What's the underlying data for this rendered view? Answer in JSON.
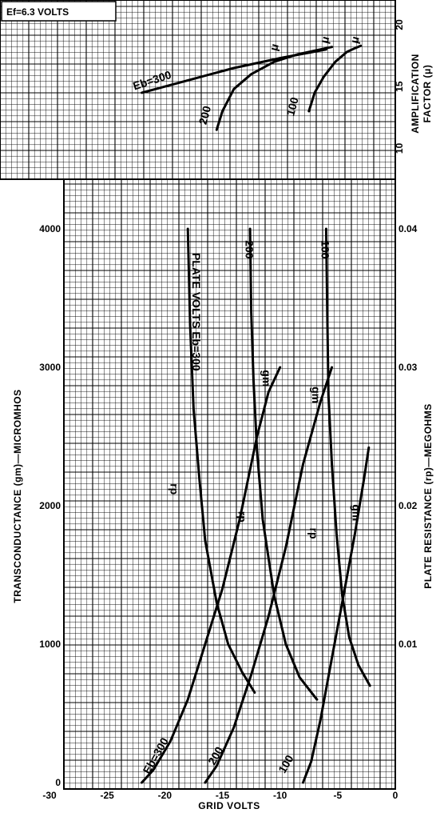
{
  "chart_data": [
    {
      "type": "line",
      "panel": "amplification-factor",
      "ylabel": "AMPLIFICATION FACTOR (μ)",
      "xlim": [
        -30,
        0
      ],
      "ylim": [
        7.5,
        22
      ],
      "yticks": [
        10,
        15,
        20
      ],
      "series": [
        {
          "name": "Eb=300",
          "quantity": "μ",
          "points": [
            [
              -22,
              14.5
            ],
            [
              -18,
              15.5
            ],
            [
              -14,
              16.5
            ],
            [
              -10,
              17.3
            ],
            [
              -6,
              18.0
            ]
          ]
        },
        {
          "name": "200",
          "quantity": "μ",
          "points": [
            [
              -15.5,
              11.5
            ],
            [
              -15,
              13.0
            ],
            [
              -14,
              14.8
            ],
            [
              -12.5,
              16.0
            ],
            [
              -10.5,
              17.0
            ],
            [
              -8.5,
              17.6
            ],
            [
              -6,
              18.1
            ],
            [
              -5.5,
              18.2
            ]
          ]
        },
        {
          "name": "100",
          "quantity": "μ",
          "points": [
            [
              -7.5,
              13.0
            ],
            [
              -7.0,
              14.5
            ],
            [
              -6.2,
              15.8
            ],
            [
              -5.2,
              17.0
            ],
            [
              -4.2,
              17.8
            ],
            [
              -3.5,
              18.1
            ],
            [
              -3,
              18.3
            ]
          ]
        }
      ],
      "annotations": [
        {
          "text": "Eb=300",
          "x": -21,
          "y": 15.2
        },
        {
          "text": "μ",
          "x": -10.2,
          "y": 18.1
        },
        {
          "text": "200",
          "x": -16.2,
          "y": 12.6
        },
        {
          "text": "μ",
          "x": -5.8,
          "y": 18.7
        },
        {
          "text": "100",
          "x": -8.6,
          "y": 13.3
        },
        {
          "text": "μ",
          "x": -3.2,
          "y": 18.7
        }
      ]
    },
    {
      "type": "line",
      "panel": "transconductance-and-plate-resistance",
      "xlabel": "GRID VOLTS",
      "ylabel": "TRANSCONDUCTANCE (gm)—MICROMHOS",
      "ylabel_right": "PLATE RESISTANCE (rp)—MEGOHMS",
      "xlim": [
        -30,
        0
      ],
      "xticks": [
        -30,
        -25,
        -20,
        -15,
        -10,
        -5,
        0
      ],
      "ylim": [
        0,
        4300
      ],
      "yticks": [
        0,
        1000,
        2000,
        3000,
        4000
      ],
      "yticks_right": [
        0.01,
        0.02,
        0.03,
        0.04
      ],
      "series": [
        {
          "name": "Eb=300",
          "quantity": "gm",
          "points": [
            [
              -22,
              0
            ],
            [
              -21,
              90
            ],
            [
              -19.5,
              300
            ],
            [
              -18,
              600
            ],
            [
              -16.5,
              1000
            ],
            [
              -15,
              1400
            ],
            [
              -13.5,
              1900
            ],
            [
              -12,
              2500
            ],
            [
              -11,
              2820
            ],
            [
              -10,
              3000
            ]
          ]
        },
        {
          "name": "200",
          "quantity": "gm",
          "points": [
            [
              -16.5,
              0
            ],
            [
              -15.5,
              120
            ],
            [
              -14,
              400
            ],
            [
              -12.5,
              780
            ],
            [
              -11,
              1200
            ],
            [
              -9.5,
              1700
            ],
            [
              -8,
              2300
            ],
            [
              -6.5,
              2750
            ],
            [
              -5.5,
              3000
            ]
          ]
        },
        {
          "name": "100",
          "quantity": "gm",
          "points": [
            [
              -8,
              0
            ],
            [
              -7.3,
              150
            ],
            [
              -6.5,
              450
            ],
            [
              -5.5,
              900
            ],
            [
              -4.5,
              1350
            ],
            [
              -3.5,
              1800
            ],
            [
              -2.7,
              2200
            ],
            [
              -2.3,
              2420
            ]
          ]
        },
        {
          "name": "Eb=300",
          "quantity": "rp",
          "points": [
            [
              -18,
              4000
            ],
            [
              -17.8,
              3300
            ],
            [
              -17.5,
              2700
            ],
            [
              -17,
              2200
            ],
            [
              -16.5,
              1750
            ],
            [
              -15.5,
              1300
            ],
            [
              -14.5,
              1000
            ],
            [
              -13.3,
              800
            ],
            [
              -12.2,
              650
            ]
          ]
        },
        {
          "name": "200",
          "quantity": "rp",
          "points": [
            [
              -12.6,
              4000
            ],
            [
              -12.5,
              3400
            ],
            [
              -12.3,
              2900
            ],
            [
              -12,
              2400
            ],
            [
              -11.5,
              1900
            ],
            [
              -10.5,
              1350
            ],
            [
              -9.5,
              1000
            ],
            [
              -8.3,
              760
            ],
            [
              -6.8,
              600
            ]
          ]
        },
        {
          "name": "100",
          "quantity": "rp",
          "points": [
            [
              -6,
              4000
            ],
            [
              -5.9,
              3400
            ],
            [
              -5.8,
              2800
            ],
            [
              -5.5,
              2300
            ],
            [
              -5.1,
              1800
            ],
            [
              -4.6,
              1350
            ],
            [
              -4,
              1050
            ],
            [
              -3.2,
              850
            ],
            [
              -2.2,
              700
            ]
          ]
        }
      ],
      "annotations": [
        {
          "text": "PLATE VOLTS Eb=300",
          "x": -17.6,
          "y": 3400
        },
        {
          "text": "200",
          "x": -13,
          "y": 3850
        },
        {
          "text": "100",
          "x": -6.4,
          "y": 3850
        },
        {
          "text": "rp",
          "x": -19.5,
          "y": 2120
        },
        {
          "text": "rp",
          "x": -13.6,
          "y": 1920
        },
        {
          "text": "rp",
          "x": -7.4,
          "y": 1800
        },
        {
          "text": "gm",
          "x": -11.5,
          "y": 2920
        },
        {
          "text": "gm",
          "x": -7.2,
          "y": 2800
        },
        {
          "text": "gm",
          "x": -3.7,
          "y": 1950
        },
        {
          "text": "Eb=300",
          "x": -20.5,
          "y": 180
        },
        {
          "text": "200",
          "x": -15.3,
          "y": 180
        },
        {
          "text": "100",
          "x": -9.2,
          "y": 120
        }
      ]
    }
  ],
  "header": {
    "filament": "Ef=6.3 VOLTS"
  }
}
